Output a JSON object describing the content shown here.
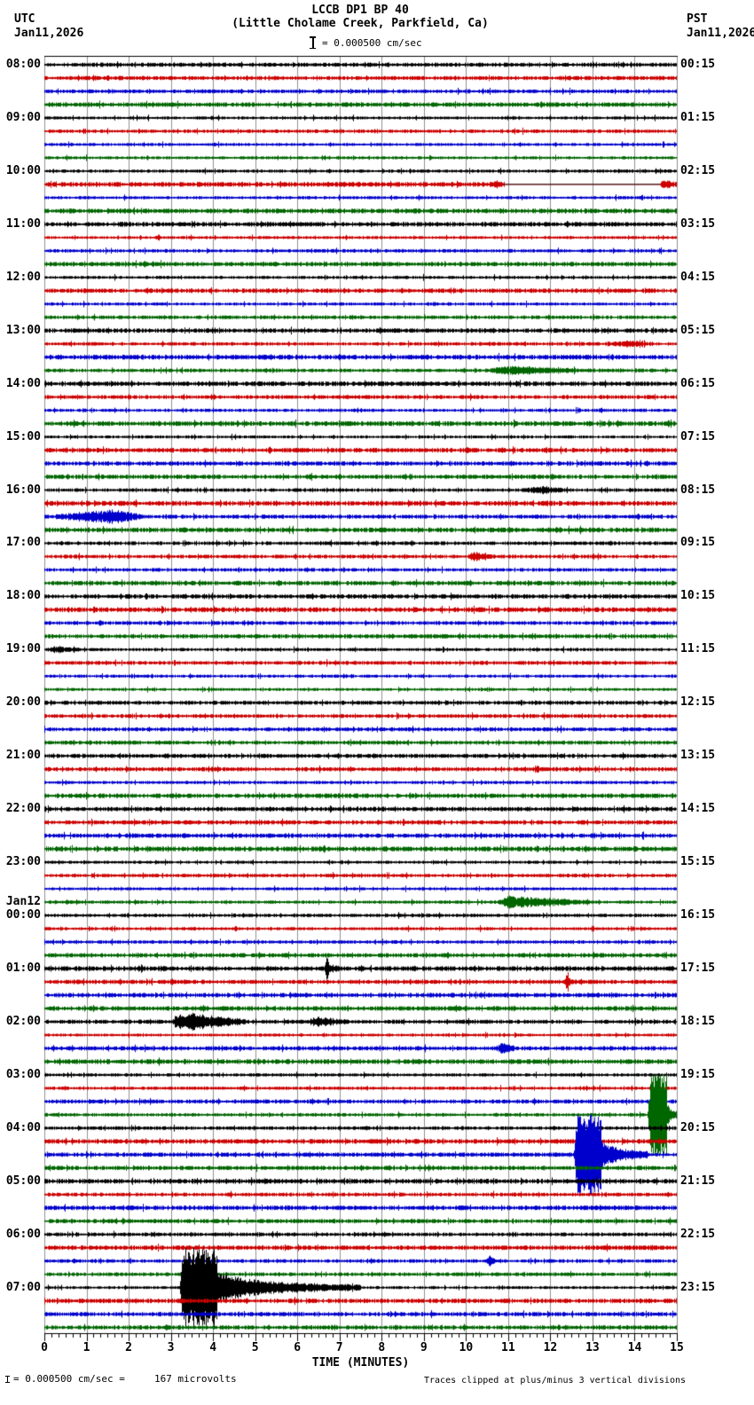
{
  "header": {
    "title": "LCCB DP1 BP 40",
    "subtitle": "(Little Cholame Creek, Parkfield, Ca)",
    "scale_label": "= 0.000500 cm/sec",
    "left_timezone": "UTC",
    "left_date": "Jan11,2026",
    "right_timezone": "PST",
    "right_date": "Jan11,2026"
  },
  "footer": {
    "left_scale_text": "= 0.000500 cm/sec =     167 microvolts",
    "right_note": "Traces clipped at plus/minus 3 vertical divisions"
  },
  "axis": {
    "xlabel": "TIME (MINUTES)",
    "tick_labels": [
      "0",
      "1",
      "2",
      "3",
      "4",
      "5",
      "6",
      "7",
      "8",
      "9",
      "10",
      "11",
      "12",
      "13",
      "14",
      "15"
    ]
  },
  "left_labels": [
    {
      "text": "08:00",
      "row": 0
    },
    {
      "text": "09:00",
      "row": 4
    },
    {
      "text": "10:00",
      "row": 8
    },
    {
      "text": "11:00",
      "row": 12
    },
    {
      "text": "12:00",
      "row": 16
    },
    {
      "text": "13:00",
      "row": 20
    },
    {
      "text": "14:00",
      "row": 24
    },
    {
      "text": "15:00",
      "row": 28
    },
    {
      "text": "16:00",
      "row": 32
    },
    {
      "text": "17:00",
      "row": 36
    },
    {
      "text": "18:00",
      "row": 40
    },
    {
      "text": "19:00",
      "row": 44
    },
    {
      "text": "20:00",
      "row": 48
    },
    {
      "text": "21:00",
      "row": 52
    },
    {
      "text": "22:00",
      "row": 56
    },
    {
      "text": "23:00",
      "row": 60
    },
    {
      "text": "Jan12",
      "row": 63
    },
    {
      "text": "00:00",
      "row": 64
    },
    {
      "text": "01:00",
      "row": 68
    },
    {
      "text": "02:00",
      "row": 72
    },
    {
      "text": "03:00",
      "row": 76
    },
    {
      "text": "04:00",
      "row": 80
    },
    {
      "text": "05:00",
      "row": 84
    },
    {
      "text": "06:00",
      "row": 88
    },
    {
      "text": "07:00",
      "row": 92
    }
  ],
  "right_labels": [
    {
      "text": "00:15",
      "row": 0
    },
    {
      "text": "01:15",
      "row": 4
    },
    {
      "text": "02:15",
      "row": 8
    },
    {
      "text": "03:15",
      "row": 12
    },
    {
      "text": "04:15",
      "row": 16
    },
    {
      "text": "05:15",
      "row": 20
    },
    {
      "text": "06:15",
      "row": 24
    },
    {
      "text": "07:15",
      "row": 28
    },
    {
      "text": "08:15",
      "row": 32
    },
    {
      "text": "09:15",
      "row": 36
    },
    {
      "text": "10:15",
      "row": 40
    },
    {
      "text": "11:15",
      "row": 44
    },
    {
      "text": "12:15",
      "row": 48
    },
    {
      "text": "13:15",
      "row": 52
    },
    {
      "text": "14:15",
      "row": 56
    },
    {
      "text": "15:15",
      "row": 60
    },
    {
      "text": "16:15",
      "row": 64
    },
    {
      "text": "17:15",
      "row": 68
    },
    {
      "text": "18:15",
      "row": 72
    },
    {
      "text": "19:15",
      "row": 76
    },
    {
      "text": "20:15",
      "row": 80
    },
    {
      "text": "21:15",
      "row": 84
    },
    {
      "text": "22:15",
      "row": 88
    },
    {
      "text": "23:15",
      "row": 92
    }
  ],
  "chart_data": {
    "type": "helicorder-seismogram",
    "station": "LCCB DP1 BP 40",
    "location": "Little Cholame Creek, Parkfield, Ca",
    "minutes_per_line": 15,
    "x_range": [
      0,
      15
    ],
    "traces_per_hour": 4,
    "total_traces": 96,
    "start_label_utc": "08:00 Jan11,2026",
    "end_label_utc": "07:45 Jan12,2026",
    "colors": [
      "#000000",
      "#cc0000",
      "#0000cc",
      "#006600"
    ],
    "grid_color": "#909090",
    "clip_divisions": 3,
    "scale_cm_per_sec": "0.000500",
    "scale_microvolts": "167",
    "events": [
      {
        "trace": "10:15",
        "kind": "burst",
        "t0": 10.55,
        "peak": 10.72,
        "t1": 10.9,
        "amp": 3
      },
      {
        "trace": "10:15",
        "kind": "flat",
        "t0": 10.9,
        "t1": 14.6
      },
      {
        "trace": "10:15",
        "kind": "burst",
        "t0": 14.6,
        "peak": 14.72,
        "t1": 14.95,
        "amp": 3
      },
      {
        "trace": "13:15",
        "kind": "burst",
        "t0": 13.3,
        "peak": 13.8,
        "t1": 14.4,
        "amp": 3
      },
      {
        "trace": "13:45",
        "kind": "burst",
        "t0": 10.4,
        "peak": 11.0,
        "t1": 13.0,
        "amp": 4
      },
      {
        "trace": "16:00",
        "kind": "burst",
        "t0": 11.3,
        "peak": 11.8,
        "t1": 12.4,
        "amp": 3
      },
      {
        "trace": "16:30",
        "kind": "burst",
        "t0": 0.1,
        "peak": 1.65,
        "t1": 2.4,
        "amp": 7
      },
      {
        "trace": "17:15",
        "kind": "burst",
        "t0": 10.0,
        "peak": 10.2,
        "t1": 10.7,
        "amp": 5
      },
      {
        "trace": "19:00",
        "kind": "burst",
        "t0": 0.0,
        "peak": 0.3,
        "t1": 1.0,
        "amp": 3
      },
      {
        "trace": "23:45",
        "kind": "burst",
        "t0": 10.75,
        "peak": 11.0,
        "t1": 13.1,
        "amp": 6
      },
      {
        "trace": "01:00",
        "kind": "spike",
        "t": 6.7,
        "amp": 14,
        "coda": 0.6
      },
      {
        "trace": "01:15",
        "kind": "spike",
        "t": 12.4,
        "amp": 11,
        "coda": 0.5
      },
      {
        "trace": "02:00",
        "kind": "burst",
        "t0": 3.0,
        "peak": 3.2,
        "t1": 4.9,
        "amp": 10
      },
      {
        "trace": "02:00",
        "kind": "burst",
        "t0": 6.2,
        "peak": 6.5,
        "t1": 7.1,
        "amp": 4
      },
      {
        "trace": "02:30",
        "kind": "burst",
        "t0": 10.7,
        "peak": 10.85,
        "t1": 11.2,
        "amp": 5
      },
      {
        "trace": "03:45",
        "kind": "clipped",
        "t0": 14.3,
        "t1": 14.75,
        "coda_end": 15.0
      },
      {
        "trace": "04:30",
        "kind": "clipped",
        "t0": 12.55,
        "t1": 13.2,
        "coda_end": 14.3
      },
      {
        "trace": "06:30",
        "kind": "spike",
        "t": 10.55,
        "amp": 9,
        "coda": 0.4
      },
      {
        "trace": "07:00",
        "kind": "clipped",
        "t0": 3.2,
        "t1": 4.1,
        "coda_end": 7.5
      }
    ]
  }
}
